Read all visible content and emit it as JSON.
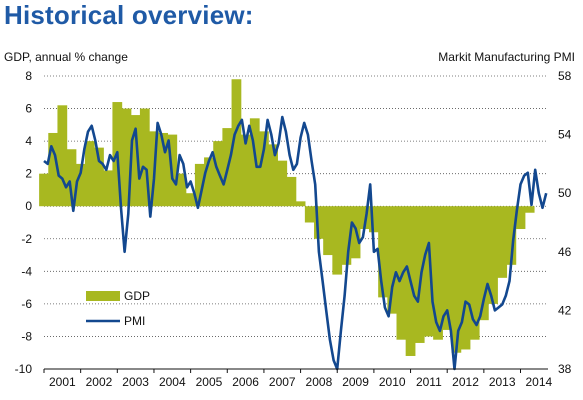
{
  "page": {
    "title": "Historical overview:"
  },
  "chart_data": {
    "type": "bar",
    "left_axis_label": "GDP, annual % change",
    "right_axis_label": "Markit Manufacturing PMI",
    "left_ylim": [
      -10,
      8
    ],
    "right_ylim": [
      38,
      58
    ],
    "left_ticks": [
      8,
      6,
      4,
      2,
      0,
      -2,
      -4,
      -6,
      -8,
      -10
    ],
    "right_ticks": [
      58,
      54,
      50,
      46,
      42,
      38
    ],
    "x_ticks": [
      "2001",
      "2002",
      "2003",
      "2004",
      "2005",
      "2006",
      "2007",
      "2008",
      "2009",
      "2010",
      "2011",
      "2012",
      "2013",
      "2014"
    ],
    "xlim": [
      2001,
      2014.75
    ],
    "grid": "horizontal-dotted",
    "legend": "lower-left",
    "colors": {
      "gdp": "#a8b820",
      "pmi": "#13488f",
      "grid": "#555555",
      "title": "#1f5aa6"
    },
    "series": [
      {
        "name": "GDP",
        "kind": "area-bars",
        "axis": "left",
        "x": [
          2001.0,
          2001.25,
          2001.5,
          2001.75,
          2002.0,
          2002.25,
          2002.5,
          2002.75,
          2003.0,
          2003.25,
          2003.5,
          2003.75,
          2004.0,
          2004.25,
          2004.5,
          2004.75,
          2005.0,
          2005.25,
          2005.5,
          2005.75,
          2006.0,
          2006.25,
          2006.5,
          2006.75,
          2007.0,
          2007.25,
          2007.5,
          2007.75,
          2008.0,
          2008.25,
          2008.5,
          2008.75,
          2009.0,
          2009.25,
          2009.5,
          2009.75,
          2010.0,
          2010.25,
          2010.5,
          2010.75,
          2011.0,
          2011.25,
          2011.5,
          2011.75,
          2012.0,
          2012.25,
          2012.5,
          2012.75,
          2013.0,
          2013.25,
          2013.5,
          2013.75,
          2014.0,
          2014.25
        ],
        "values": [
          2.0,
          4.5,
          6.2,
          3.5,
          2.6,
          4.0,
          3.6,
          2.2,
          6.4,
          6.0,
          5.6,
          6.0,
          4.6,
          4.5,
          4.4,
          2.0,
          0.8,
          2.6,
          3.0,
          4.0,
          4.8,
          7.8,
          4.4,
          5.4,
          4.6,
          3.8,
          2.8,
          1.8,
          0.3,
          -1.0,
          -2.0,
          -3.0,
          -4.2,
          -3.6,
          -3.2,
          -1.4,
          -1.6,
          -5.6,
          -6.6,
          -8.2,
          -9.2,
          -8.4,
          -8.0,
          -8.2,
          -7.6,
          -9.0,
          -8.8,
          -8.2,
          -7.0,
          -6.0,
          -4.4,
          -3.6,
          -1.4,
          -0.4
        ]
      },
      {
        "name": "PMI",
        "kind": "line",
        "axis": "right",
        "x": [
          2001.0,
          2001.1,
          2001.2,
          2001.3,
          2001.4,
          2001.5,
          2001.6,
          2001.7,
          2001.8,
          2001.9,
          2002.0,
          2002.1,
          2002.2,
          2002.3,
          2002.4,
          2002.5,
          2002.6,
          2002.7,
          2002.8,
          2002.9,
          2003.0,
          2003.1,
          2003.2,
          2003.3,
          2003.4,
          2003.5,
          2003.6,
          2003.7,
          2003.8,
          2003.9,
          2004.0,
          2004.1,
          2004.2,
          2004.3,
          2004.4,
          2004.5,
          2004.6,
          2004.7,
          2004.8,
          2004.9,
          2005.0,
          2005.1,
          2005.2,
          2005.3,
          2005.4,
          2005.5,
          2005.6,
          2005.7,
          2005.8,
          2005.9,
          2006.0,
          2006.1,
          2006.2,
          2006.3,
          2006.4,
          2006.5,
          2006.6,
          2006.7,
          2006.8,
          2006.9,
          2007.0,
          2007.1,
          2007.2,
          2007.3,
          2007.4,
          2007.5,
          2007.6,
          2007.7,
          2007.8,
          2007.9,
          2008.0,
          2008.1,
          2008.2,
          2008.3,
          2008.4,
          2008.5,
          2008.6,
          2008.7,
          2008.8,
          2008.9,
          2009.0,
          2009.1,
          2009.2,
          2009.3,
          2009.4,
          2009.5,
          2009.6,
          2009.7,
          2009.8,
          2009.9,
          2010.0,
          2010.1,
          2010.2,
          2010.3,
          2010.4,
          2010.5,
          2010.6,
          2010.7,
          2010.8,
          2010.9,
          2011.0,
          2011.1,
          2011.2,
          2011.3,
          2011.4,
          2011.5,
          2011.6,
          2011.7,
          2011.8,
          2011.9,
          2012.0,
          2012.1,
          2012.2,
          2012.3,
          2012.4,
          2012.5,
          2012.6,
          2012.7,
          2012.8,
          2012.9,
          2013.0,
          2013.1,
          2013.2,
          2013.3,
          2013.4,
          2013.5,
          2013.6,
          2013.7,
          2013.8,
          2013.9,
          2014.0,
          2014.1,
          2014.2,
          2014.3,
          2014.4,
          2014.5,
          2014.6,
          2014.7
        ],
        "values": [
          52.2,
          52.0,
          53.2,
          52.6,
          51.2,
          51.0,
          50.4,
          50.8,
          48.8,
          50.8,
          51.4,
          53.0,
          54.2,
          54.6,
          53.6,
          52.2,
          52.0,
          51.6,
          52.6,
          52.2,
          52.8,
          49.0,
          46.0,
          48.6,
          53.6,
          54.4,
          51.0,
          51.8,
          51.6,
          48.4,
          51.0,
          54.8,
          54.0,
          52.8,
          53.6,
          51.0,
          50.6,
          52.6,
          52.0,
          50.4,
          50.8,
          50.0,
          49.0,
          50.2,
          51.4,
          52.2,
          52.8,
          51.8,
          51.2,
          50.6,
          51.6,
          52.6,
          54.0,
          54.6,
          55.0,
          53.4,
          54.6,
          53.6,
          51.8,
          51.8,
          53.0,
          55.0,
          54.0,
          52.6,
          53.4,
          55.2,
          54.2,
          52.6,
          51.6,
          52.0,
          53.8,
          54.8,
          54.0,
          52.2,
          50.6,
          46.0,
          44.0,
          42.0,
          40.0,
          38.6,
          38.0,
          40.6,
          43.0,
          46.0,
          48.0,
          47.6,
          46.6,
          47.0,
          48.6,
          50.6,
          46.0,
          46.2,
          44.0,
          42.2,
          41.6,
          43.6,
          44.6,
          44.0,
          44.6,
          45.0,
          44.0,
          43.0,
          42.6,
          44.6,
          45.8,
          46.6,
          42.6,
          41.2,
          40.6,
          41.6,
          42.0,
          40.6,
          38.0,
          40.6,
          41.2,
          42.6,
          42.4,
          41.4,
          41.0,
          41.6,
          42.8,
          43.8,
          43.0,
          42.0,
          42.2,
          42.4,
          43.0,
          44.0,
          46.8,
          48.8,
          50.6,
          51.2,
          51.4,
          49.2,
          51.6,
          50.0,
          49.0,
          50.0
        ]
      }
    ]
  }
}
